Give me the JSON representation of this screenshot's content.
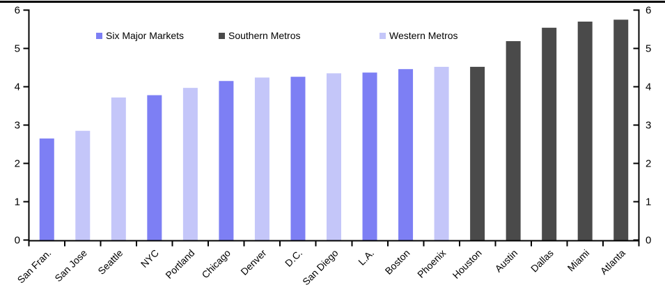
{
  "chart_data": {
    "type": "bar",
    "title": "",
    "categories": [
      "San Fran.",
      "San Jose",
      "Seattle",
      "NYC",
      "Portland",
      "Chicago",
      "Denver",
      "D.C.",
      "San Diego",
      "L.A.",
      "Boston",
      "Phoenix",
      "Houston",
      "Austin",
      "Dallas",
      "Miami",
      "Atlanta"
    ],
    "values": [
      2.65,
      2.85,
      3.72,
      3.78,
      3.97,
      4.15,
      4.24,
      4.26,
      4.35,
      4.37,
      4.46,
      4.52,
      4.52,
      5.19,
      5.54,
      5.7,
      5.75
    ],
    "bar_series": [
      "Six Major Markets",
      "Western Metros",
      "Western Metros",
      "Six Major Markets",
      "Western Metros",
      "Six Major Markets",
      "Western Metros",
      "Six Major Markets",
      "Western Metros",
      "Six Major Markets",
      "Six Major Markets",
      "Western Metros",
      "Southern Metros",
      "Southern Metros",
      "Southern Metros",
      "Southern Metros",
      "Southern Metros"
    ],
    "series": [
      {
        "name": "Six Major Markets",
        "color": "#7D7FF4"
      },
      {
        "name": "Southern Metros",
        "color": "#4A4A4A"
      },
      {
        "name": "Western Metros",
        "color": "#C4C6F9"
      }
    ],
    "ylim": [
      0,
      6
    ],
    "yticks": [
      0,
      1,
      2,
      3,
      4,
      5,
      6
    ],
    "ytick_labels": [
      "0",
      "1",
      "2",
      "3",
      "4",
      "5",
      "6"
    ],
    "dual_y_axes": true,
    "grid": false,
    "legend_position": "top-inside",
    "xlabel": "",
    "ylabel": ""
  },
  "legend": {
    "items": [
      {
        "label": "Six Major Markets",
        "color": "#7D7FF4"
      },
      {
        "label": "Southern Metros",
        "color": "#4A4A4A"
      },
      {
        "label": "Western Metros",
        "color": "#C4C6F9"
      }
    ]
  },
  "style": {
    "axis_color": "#000000",
    "background": "#FFFFFF",
    "top_border_color": "#000000"
  }
}
